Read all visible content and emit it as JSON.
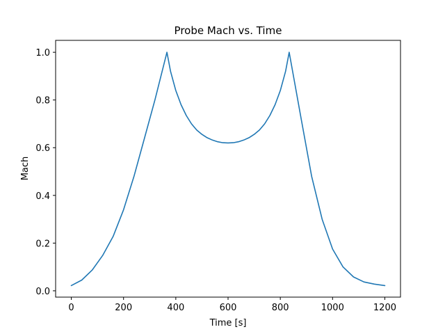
{
  "chart_data": {
    "type": "line",
    "title": "Probe Mach vs. Time",
    "xlabel": "Time [s]",
    "ylabel": "Mach",
    "xlim": [
      -60,
      1260
    ],
    "ylim": [
      -0.0265,
      1.05
    ],
    "xticks": [
      0,
      200,
      400,
      600,
      800,
      1000,
      1200
    ],
    "yticks": [
      0.0,
      0.2,
      0.4,
      0.6,
      0.8,
      1.0
    ],
    "xtick_labels": [
      "0",
      "200",
      "400",
      "600",
      "800",
      "1000",
      "1200"
    ],
    "ytick_labels": [
      "0.0",
      "0.2",
      "0.4",
      "0.6",
      "0.8",
      "1.0"
    ],
    "grid": false,
    "line_color": "#1f77b4",
    "series": [
      {
        "x": [
          0,
          40,
          80,
          120,
          160,
          200,
          240,
          280,
          320,
          366,
          380,
          400,
          420,
          440,
          460,
          480,
          500,
          520,
          540,
          560,
          580,
          600,
          620,
          640,
          660,
          680,
          700,
          720,
          740,
          760,
          780,
          800,
          820,
          834,
          880,
          920,
          960,
          1000,
          1040,
          1080,
          1120,
          1160,
          1200
        ],
        "y": [
          0.022,
          0.045,
          0.087,
          0.148,
          0.228,
          0.34,
          0.48,
          0.64,
          0.8,
          1.0,
          0.92,
          0.84,
          0.78,
          0.735,
          0.7,
          0.674,
          0.656,
          0.642,
          0.632,
          0.625,
          0.621,
          0.62,
          0.621,
          0.625,
          0.632,
          0.642,
          0.656,
          0.674,
          0.7,
          0.735,
          0.78,
          0.84,
          0.92,
          1.0,
          0.72,
          0.48,
          0.3,
          0.175,
          0.1,
          0.058,
          0.037,
          0.028,
          0.022
        ]
      }
    ]
  }
}
